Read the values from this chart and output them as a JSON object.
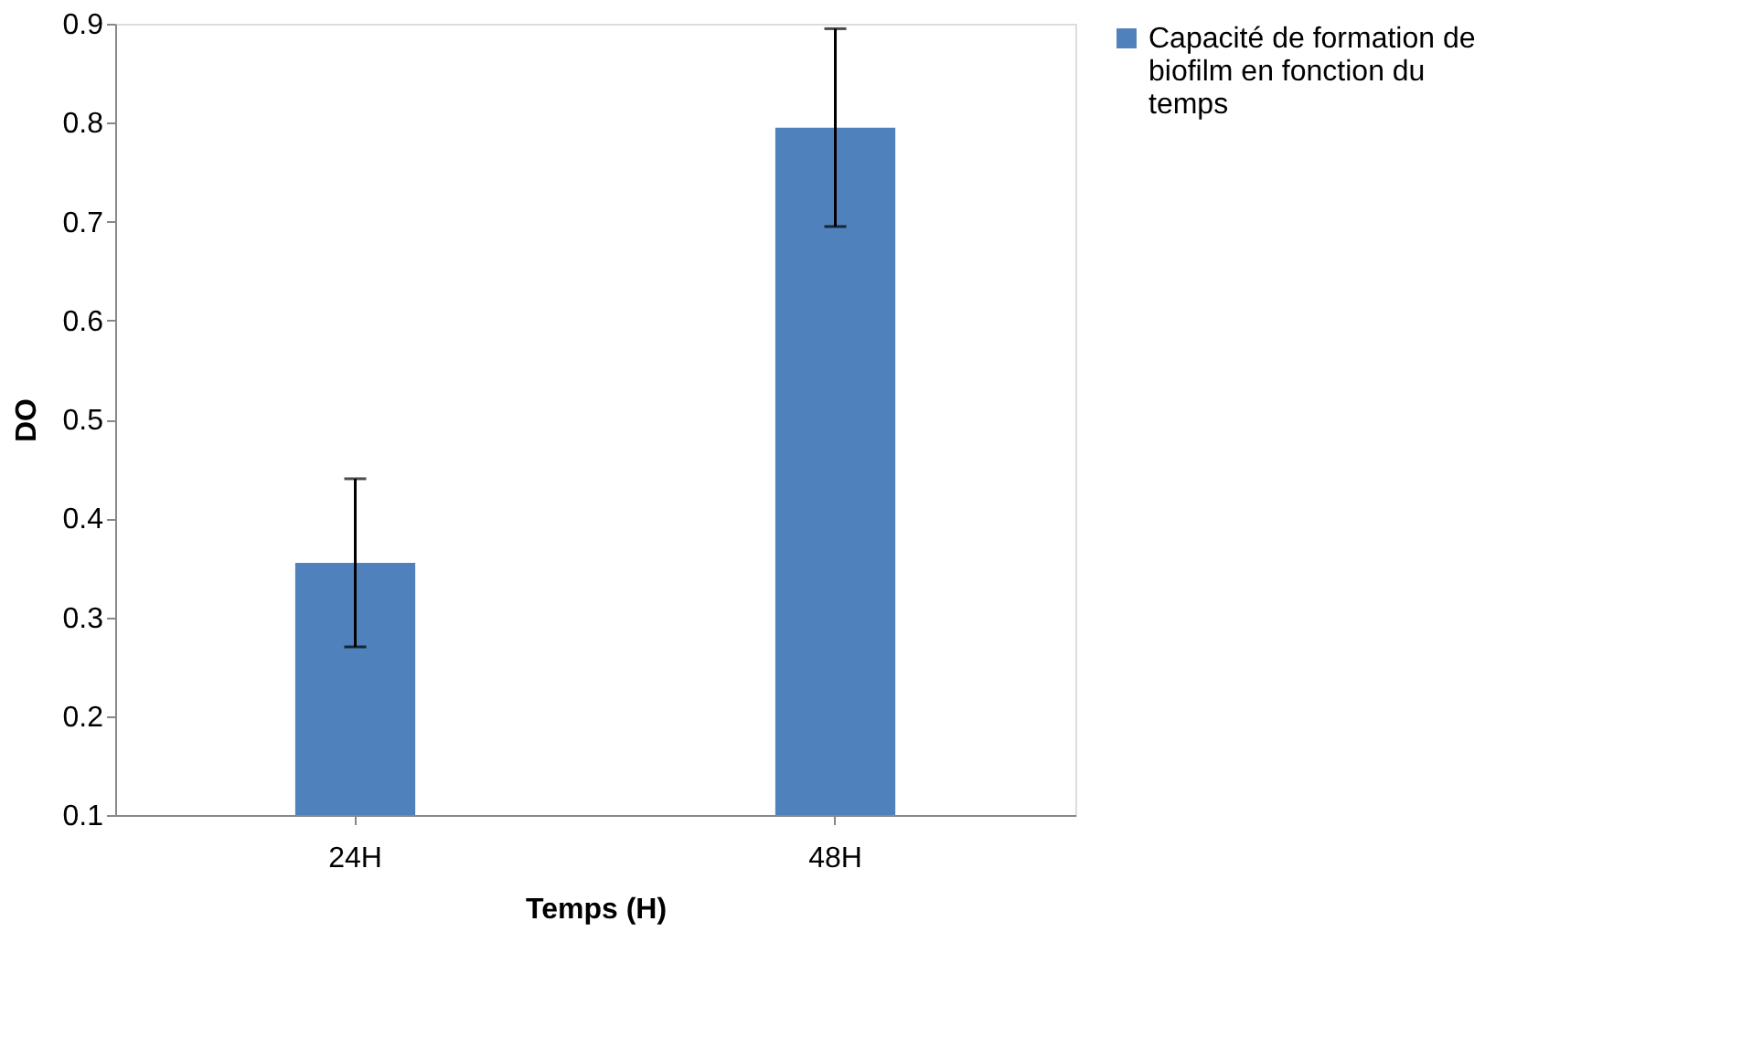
{
  "chart_data": {
    "type": "bar",
    "xlabel": "Temps (H)",
    "ylabel": "DO",
    "categories": [
      "24H",
      "48H"
    ],
    "series": [
      {
        "name": "Capacité de formation de biofilm en fonction du temps",
        "color": "#4f81bd",
        "values": [
          0.355,
          0.795
        ],
        "errors": [
          0.085,
          0.1
        ]
      }
    ],
    "ylim": [
      0.1,
      0.9
    ],
    "yticks": [
      0.1,
      0.2,
      0.3,
      0.4,
      0.5,
      0.6,
      0.7,
      0.8,
      0.9
    ],
    "grid": false,
    "legend": "right"
  }
}
